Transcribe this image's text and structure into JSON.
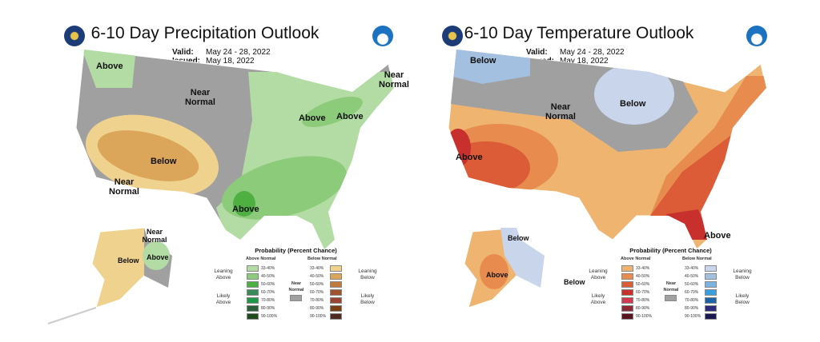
{
  "panels": [
    {
      "title": "6-10 Day Precipitation Outlook",
      "valid_label": "Valid:",
      "valid": "May 24 - 28, 2022",
      "issued_label": "Issued:",
      "issued": "May 18, 2022",
      "map_labels": [
        "Above",
        "Near Normal",
        "Near Normal",
        "Below",
        "Near Normal",
        "Above",
        "Above",
        "Above",
        "Near Normal",
        "Below",
        "Above"
      ],
      "legend": {
        "title": "Probability (Percent Chance)",
        "above_header": "Above Normal",
        "below_header": "Below Normal",
        "near": "Near Normal",
        "leaning_above": "Leaning Above",
        "likely_above": "Likely Above",
        "leaning_below": "Leaning Below",
        "likely_below": "Likely Below",
        "above_ranges": [
          "33-40%",
          "40-50%",
          "50-60%",
          "60-70%",
          "70-80%",
          "80-90%",
          "90-100%"
        ],
        "below_ranges": [
          "33-40%",
          "40-50%",
          "50-60%",
          "60-70%",
          "70-80%",
          "80-90%",
          "90-100%"
        ],
        "above_colors": [
          "#b3dba4",
          "#8ccb7a",
          "#4fb042",
          "#3a8a5a",
          "#1e9a48",
          "#2c5e3a",
          "#1f4a1c"
        ],
        "below_colors": [
          "#f0d28f",
          "#dba55a",
          "#c07a3c",
          "#a0542e",
          "#9c4434",
          "#7a3f10",
          "#4e2b22"
        ],
        "near_color": "#a0a0a0"
      }
    },
    {
      "title": "6-10 Day Temperature Outlook",
      "valid_label": "Valid:",
      "valid": "May 24 - 28, 2022",
      "issued_label": "Issued:",
      "issued": "May 18, 2022",
      "map_labels": [
        "Below",
        "Near Normal",
        "Below",
        "Above",
        "Above",
        "Below",
        "Above",
        "Below"
      ],
      "legend": {
        "title": "Probability (Percent Chance)",
        "above_header": "Above Normal",
        "below_header": "Below Normal",
        "near": "Near Normal",
        "leaning_above": "Leaning Above",
        "likely_above": "Likely Above",
        "leaning_below": "Leaning Below",
        "likely_below": "Likely Below",
        "above_ranges": [
          "33-40%",
          "40-50%",
          "50-60%",
          "60-70%",
          "70-80%",
          "80-90%",
          "90-100%"
        ],
        "below_ranges": [
          "33-40%",
          "40-50%",
          "50-60%",
          "60-70%",
          "70-80%",
          "80-90%",
          "90-100%"
        ],
        "above_colors": [
          "#efb470",
          "#e78c4e",
          "#db5c36",
          "#c8302e",
          "#d23a52",
          "#8e2a36",
          "#5a1420"
        ],
        "below_colors": [
          "#c9d5ea",
          "#a4c0e0",
          "#7db3e0",
          "#3a9fdc",
          "#1f63a8",
          "#2e2a7e",
          "#1c1850"
        ],
        "near_color": "#a0a0a0"
      }
    }
  ]
}
